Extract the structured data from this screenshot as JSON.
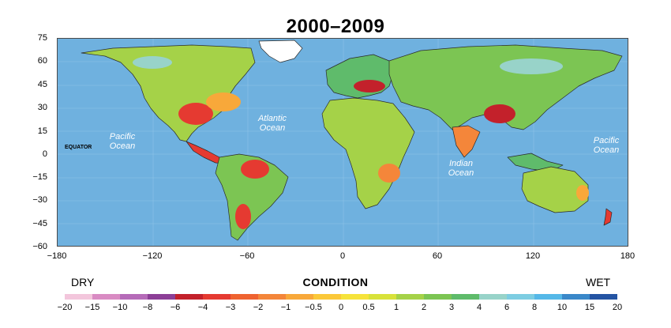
{
  "title": "2000–2009",
  "y_ticks": [
    "75",
    "60",
    "45",
    "30",
    "15",
    "0",
    "−15",
    "−30",
    "−45",
    "−60"
  ],
  "x_ticks": [
    "−180",
    "−120",
    "−60",
    "0",
    "60",
    "120",
    "180"
  ],
  "equator_label": "EQUATOR",
  "oceans": [
    {
      "label": "Pacific\nOcean"
    },
    {
      "label": "Atlantic\nOcean"
    },
    {
      "label": "Indian\nOcean"
    },
    {
      "label": "Pacific\nOcean"
    }
  ],
  "legend": {
    "dry": "DRY",
    "wet": "WET",
    "title": "CONDITION",
    "values": [
      "−20",
      "−15",
      "−10",
      "−8",
      "−6",
      "−4",
      "−3",
      "−2",
      "−1",
      "−0.5",
      "0",
      "0.5",
      "1",
      "2",
      "3",
      "4",
      "6",
      "8",
      "10",
      "15",
      "20"
    ],
    "colors": [
      "#f3c6dc",
      "#d98bc3",
      "#b56bb8",
      "#8c3f97",
      "#c3212b",
      "#e53a31",
      "#ef6330",
      "#f4863a",
      "#f8a83a",
      "#fbc839",
      "#f6e33b",
      "#d8e23a",
      "#a5d248",
      "#7cc553",
      "#5fbb6b",
      "#98d3c9",
      "#7dcde2",
      "#55b8e8",
      "#3a88c9",
      "#2454a3"
    ],
    "ocean_color": "#6fb1df",
    "land_base_color": "#a5d248"
  }
}
